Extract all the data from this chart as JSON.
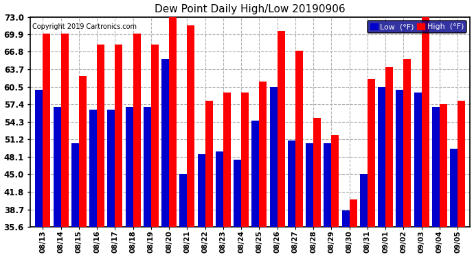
{
  "title": "Dew Point Daily High/Low 20190906",
  "copyright": "Copyright 2019 Cartronics.com",
  "dates": [
    "08/13",
    "08/14",
    "08/15",
    "08/16",
    "08/17",
    "08/18",
    "08/19",
    "08/20",
    "08/21",
    "08/22",
    "08/23",
    "08/24",
    "08/25",
    "08/26",
    "08/27",
    "08/28",
    "08/29",
    "08/30",
    "08/31",
    "09/01",
    "09/02",
    "09/03",
    "09/04",
    "09/05"
  ],
  "low": [
    60.0,
    57.0,
    50.5,
    56.5,
    56.5,
    57.0,
    57.0,
    65.5,
    45.0,
    48.5,
    49.0,
    47.5,
    54.5,
    60.5,
    51.0,
    50.5,
    50.5,
    38.5,
    45.0,
    60.5,
    60.0,
    59.5,
    57.0,
    49.5
  ],
  "high": [
    70.0,
    70.0,
    62.5,
    68.0,
    68.0,
    70.0,
    68.0,
    73.5,
    71.5,
    58.0,
    59.5,
    59.5,
    61.5,
    70.5,
    67.0,
    55.0,
    52.0,
    40.5,
    62.0,
    64.0,
    65.5,
    73.0,
    57.5,
    58.0
  ],
  "low_color": "#0000cc",
  "high_color": "#ff0000",
  "bg_color": "#ffffff",
  "plot_bg_color": "#ffffff",
  "grid_color": "#b0b0b0",
  "ymin": 35.6,
  "ymax": 73.0,
  "yticks": [
    35.6,
    38.7,
    41.8,
    45.0,
    48.1,
    51.2,
    54.3,
    57.4,
    60.5,
    63.7,
    66.8,
    69.9,
    73.0
  ]
}
